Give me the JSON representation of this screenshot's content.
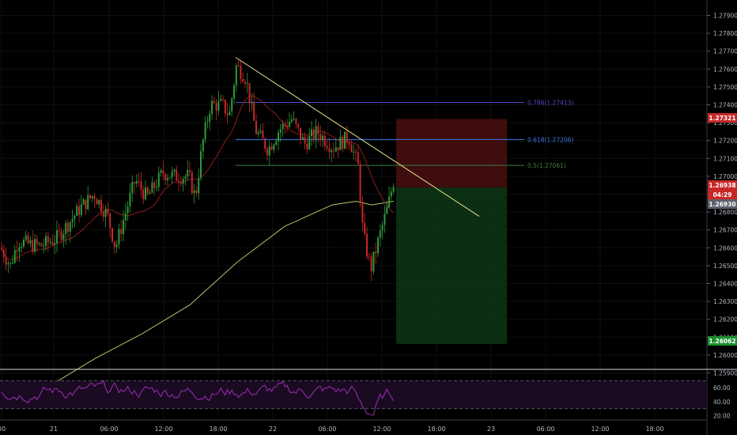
{
  "chart_data": {
    "type": "candlestick",
    "price_axis": {
      "ticks": [
        "1.27900",
        "1.27800",
        "1.27700",
        "1.27600",
        "1.27500",
        "1.27400",
        "1.27300",
        "1.27200",
        "1.27100",
        "1.27000",
        "1.26900",
        "1.26800",
        "1.26700",
        "1.26600",
        "1.26500",
        "1.26400",
        "1.26300",
        "1.26200",
        "1.26100",
        "1.26000",
        "1.25900"
      ],
      "range": [
        1.2588,
        1.2798
      ]
    },
    "rsi_axis": {
      "ticks": [
        "60.00",
        "40.00",
        "20.00"
      ],
      "range": [
        15,
        85
      ],
      "bands": [
        70,
        30
      ]
    },
    "time_axis": {
      "ticks": [
        "00",
        "21",
        "06:00",
        "12:00",
        "18:00",
        "22",
        "06:00",
        "12:00",
        "18:00",
        "23",
        "06:00",
        "12:00",
        "18:00"
      ]
    },
    "fibonacci": [
      {
        "label": "0.786(1.27413)",
        "price": 1.27413,
        "color": "#5048c8"
      },
      {
        "label": "0.618(1.27206)",
        "price": 1.27206,
        "color": "#3b78e0"
      },
      {
        "label": "0.5(1.27061)",
        "price": 1.27061,
        "color": "#3f7e3c"
      }
    ],
    "price_tags": [
      {
        "label": "1.27321",
        "price": 1.27321,
        "bg": "#c62828",
        "fg": "#ffffff"
      },
      {
        "label": "1.26938",
        "price": 1.26938,
        "bg": "#c62828",
        "fg": "#ffffff"
      },
      {
        "label": "04:29",
        "price": 1.26895,
        "bg": "#c62828",
        "fg": "#ffffff"
      },
      {
        "label": "1.26930",
        "price": 1.26845,
        "bg": "#5d606b",
        "fg": "#ffffff"
      },
      {
        "label": "1.26062",
        "price": 1.26062,
        "bg": "#1b8e2c",
        "fg": "#ffffff"
      }
    ],
    "position": {
      "entry": 1.26938,
      "stop": 1.27321,
      "target": 1.26062
    },
    "trendline": {
      "from": {
        "time_index": 0,
        "price": 1.27665
      },
      "to": {
        "time_index": 1,
        "price": 1.26776
      }
    },
    "colors": {
      "up": "#2e9a3a",
      "down": "#c62828",
      "ma_fast": "#8b1c1c",
      "ma_slow": "#b9c26a",
      "rsi": "#9c2fb8",
      "trend": "#e3e08a"
    }
  }
}
